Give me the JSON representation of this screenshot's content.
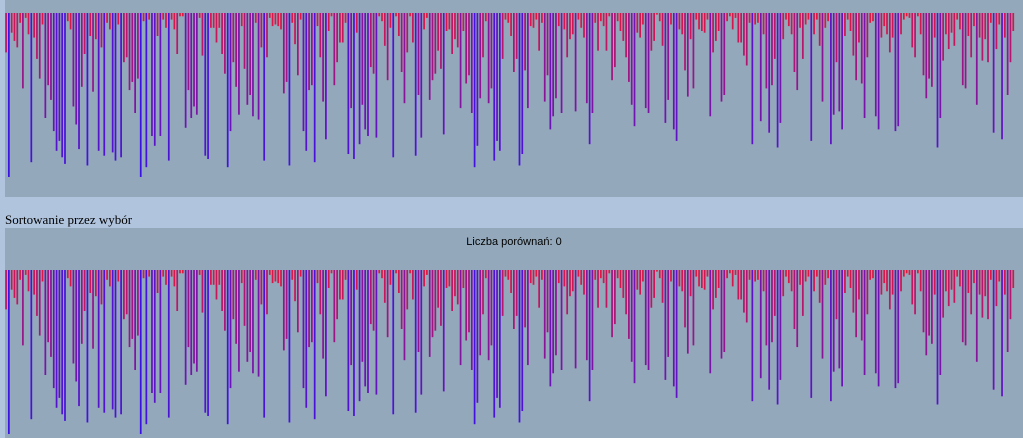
{
  "algorithm_title": "Sortowanie przez wybór",
  "comparisons_text": "Liczba porównań: 0",
  "colors": {
    "low": "#e8173a",
    "high": "#3a12e8",
    "background": "#b0c4de",
    "panel": "#93a9bb"
  },
  "chart_data": {
    "type": "bar",
    "max_value": 100,
    "values": [
      24,
      100,
      12,
      17,
      21,
      6,
      46,
      3,
      13,
      91,
      15,
      28,
      40,
      7,
      64,
      44,
      53,
      72,
      84,
      78,
      88,
      92,
      5,
      10,
      57,
      68,
      83,
      45,
      25,
      93,
      14,
      48,
      16,
      84,
      21,
      87,
      6,
      10,
      85,
      90,
      7,
      88,
      30,
      27,
      47,
      42,
      61,
      40,
      100,
      5,
      94,
      4,
      75,
      81,
      14,
      75,
      4,
      9,
      90,
      4,
      10,
      25,
      2,
      2,
      70,
      47,
      64,
      57,
      62,
      3,
      26,
      87,
      89,
      9,
      9,
      18,
      9,
      25,
      37,
      94,
      72,
      30,
      45,
      62,
      8,
      34,
      56,
      50,
      63,
      6,
      65,
      21,
      90,
      27,
      3,
      8,
      7,
      8,
      10,
      49,
      42,
      93,
      6,
      19,
      38,
      4,
      72,
      84,
      47,
      44,
      91,
      8,
      27,
      54,
      77,
      11,
      2,
      44,
      30,
      18,
      18,
      6,
      86,
      58,
      89,
      12,
      80,
      56,
      71,
      75,
      33,
      37,
      76,
      2,
      5,
      20,
      41,
      9,
      88,
      2,
      14,
      36,
      55,
      24,
      2,
      18,
      87,
      50,
      76,
      10,
      3,
      53,
      41,
      37,
      23,
      34,
      74,
      11,
      10,
      25,
      16,
      21,
      58,
      11,
      43,
      38,
      61,
      94,
      81,
      52,
      27,
      5,
      55,
      46,
      90,
      78,
      84,
      28,
      4,
      6,
      14,
      36,
      28,
      93,
      86,
      35,
      58,
      8,
      9,
      4,
      23,
      6,
      54,
      38,
      71,
      63,
      52,
      8,
      61,
      10,
      27,
      16,
      13,
      60,
      4,
      9,
      15,
      55,
      80,
      61,
      6,
      23,
      5,
      8,
      23,
      2,
      41,
      33,
      5,
      11,
      17,
      27,
      42,
      56,
      69,
      12,
      15,
      7,
      58,
      61,
      23,
      17,
      1,
      5,
      20,
      67,
      53,
      7,
      71,
      78,
      10,
      13,
      35,
      51,
      16,
      46,
      4,
      10,
      11,
      12,
      4,
      63,
      24,
      17,
      11,
      54,
      50,
      5,
      2,
      10,
      3,
      18,
      18,
      26,
      32,
      6,
      80,
      7,
      6,
      66,
      13,
      46,
      73,
      44,
      28,
      82,
      67,
      16,
      4,
      8,
      13,
      36,
      47,
      9,
      28,
      7,
      4,
      78,
      13,
      4,
      20,
      54,
      9,
      5,
      80,
      62,
      30,
      60,
      71,
      14,
      4,
      11,
      26,
      41,
      18,
      43,
      64,
      27,
      6,
      5,
      63,
      71,
      15,
      8,
      13,
      24,
      15,
      72,
      69,
      13,
      4,
      2,
      3,
      21,
      27,
      2,
      13,
      38,
      52,
      40,
      45,
      15,
      82,
      64,
      29,
      13,
      22,
      12,
      20,
      4,
      10,
      44,
      46,
      14,
      27,
      8,
      56,
      15,
      29,
      16,
      30,
      6,
      73,
      22,
      7,
      77,
      15,
      50,
      30,
      11
    ]
  }
}
